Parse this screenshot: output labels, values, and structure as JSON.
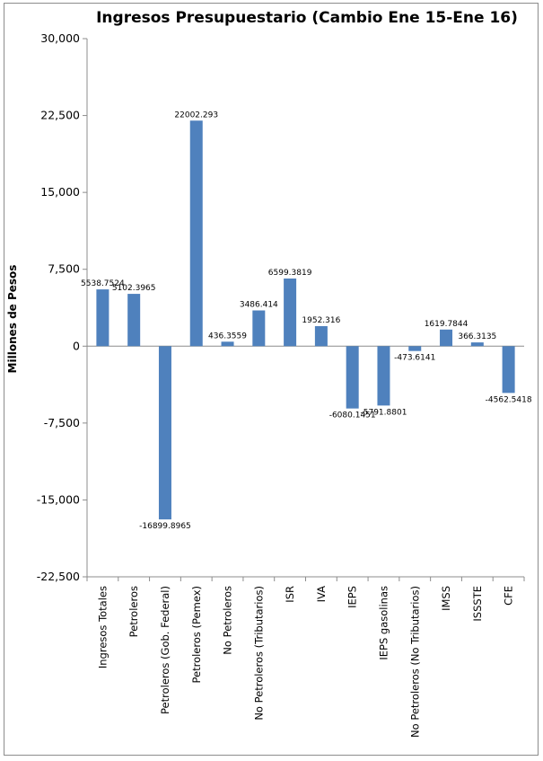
{
  "chart_data": {
    "type": "bar",
    "title": "Ingresos Presupuestario (Cambio Ene 15-Ene 16)",
    "xlabel": "",
    "ylabel": "Millones de Pesos",
    "ylim": [
      -22500,
      30000
    ],
    "yticks": [
      "30,000",
      "22,500",
      "15,000",
      "7,500",
      "0",
      "-7,500",
      "-15,000",
      "-22,500"
    ],
    "ytick_values": [
      30000,
      22500,
      15000,
      7500,
      0,
      -7500,
      -15000,
      -22500
    ],
    "grid": false,
    "bar_color": "#4f81bd",
    "categories": [
      "Ingresos Totales",
      "Petroleros",
      "Petroleros (Gob. Federal)",
      "Petroleros (Pemex)",
      "No Petroleros",
      "No Petroleros (Tributarios)",
      "ISR",
      "IVA",
      "IEPS",
      "IEPS gasolinas",
      "No Petroleros (No Tributarios)",
      "IMSS",
      "ISSSTE",
      "CFE"
    ],
    "values": [
      5538.7524,
      5102.3965,
      -16899.8965,
      22002.293,
      436.3559,
      3486.414,
      6599.3819,
      1952.316,
      -6080.1451,
      -5791.8801,
      -473.6141,
      1619.7844,
      366.3135,
      -4562.5418
    ],
    "data_labels": [
      "5538.7524",
      "5102.3965",
      "-16899.8965",
      "22002.293",
      "436.3559",
      "3486.414",
      "6599.3819",
      "1952.316",
      "-6080.1451",
      "-5791.8801",
      "-473.6141",
      "1619.7844",
      "366.3135",
      "-4562.5418"
    ]
  }
}
